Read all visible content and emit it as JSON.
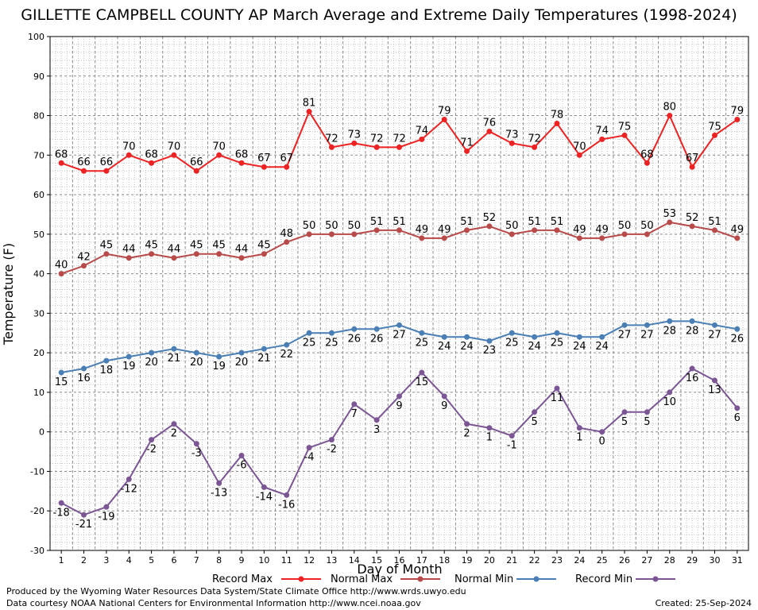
{
  "chart_data": {
    "type": "line",
    "title": "GILLETTE CAMPBELL COUNTY AP March Average and Extreme Daily Temperatures (1998-2024)",
    "xlabel": "Day of Month",
    "ylabel": "Temperature (F)",
    "ylim": [
      -30,
      100
    ],
    "ytick_step": 10,
    "x": [
      1,
      2,
      3,
      4,
      5,
      6,
      7,
      8,
      9,
      10,
      11,
      12,
      13,
      14,
      15,
      16,
      17,
      18,
      19,
      20,
      21,
      22,
      23,
      24,
      25,
      26,
      27,
      28,
      29,
      30,
      31
    ],
    "grid": true,
    "legend_position": "bottom",
    "series": [
      {
        "name": "Record Max",
        "color": "#ee2222",
        "values": [
          68,
          66,
          66,
          70,
          68,
          70,
          66,
          70,
          68,
          67,
          67,
          81,
          72,
          73,
          72,
          72,
          74,
          79,
          71,
          76,
          73,
          72,
          78,
          70,
          74,
          75,
          68,
          80,
          67,
          75,
          79
        ]
      },
      {
        "name": "Normal Max",
        "color": "#b84a4a",
        "values": [
          40,
          42,
          45,
          44,
          45,
          44,
          45,
          45,
          44,
          45,
          48,
          50,
          50,
          50,
          51,
          51,
          49,
          49,
          51,
          52,
          50,
          51,
          51,
          49,
          49,
          50,
          50,
          53,
          52,
          51,
          49
        ]
      },
      {
        "name": "Normal Min",
        "color": "#4a7fb5",
        "values": [
          15,
          16,
          18,
          19,
          20,
          21,
          20,
          19,
          20,
          21,
          22,
          25,
          25,
          26,
          26,
          27,
          25,
          24,
          24,
          23,
          25,
          24,
          25,
          24,
          24,
          27,
          27,
          28,
          28,
          27,
          26
        ]
      },
      {
        "name": "Record Min",
        "color": "#7b5594",
        "values": [
          -18,
          -21,
          -19,
          -12,
          -2,
          2,
          -3,
          -13,
          -6,
          -14,
          -16,
          -4,
          -2,
          7,
          3,
          9,
          15,
          9,
          2,
          1,
          -1,
          5,
          11,
          1,
          0,
          5,
          5,
          10,
          16,
          13,
          6
        ]
      }
    ]
  },
  "footer": {
    "produced": "Produced by the Wyoming Water Resources Data System/State Climate Office http://www.wrds.uwyo.edu",
    "courtesy": "Data courtesy NOAA National Centers for Environmental Information http://www.ncei.noaa.gov",
    "created": "Created:  25-Sep-2024"
  }
}
